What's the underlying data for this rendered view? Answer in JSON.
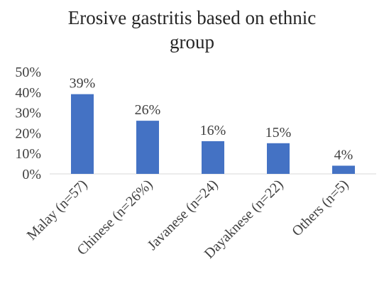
{
  "chart_data": {
    "type": "bar",
    "title_lines": [
      "Erosive gastritis based on ethnic",
      "group"
    ],
    "categories": [
      "Malay (n=57)",
      "Chinese (n=26%)",
      "Javanese (n=24)",
      "Dayaknese (n=22)",
      "Others (n=5)"
    ],
    "values": [
      39,
      26,
      16,
      15,
      4
    ],
    "data_labels": [
      "39%",
      "26%",
      "16%",
      "15%",
      "4%"
    ],
    "y_ticks": [
      "0%",
      "10%",
      "20%",
      "30%",
      "40%",
      "50%"
    ],
    "ylim": [
      0,
      50
    ],
    "bar_color": "#4472c4",
    "grid": false,
    "legend": "none"
  }
}
